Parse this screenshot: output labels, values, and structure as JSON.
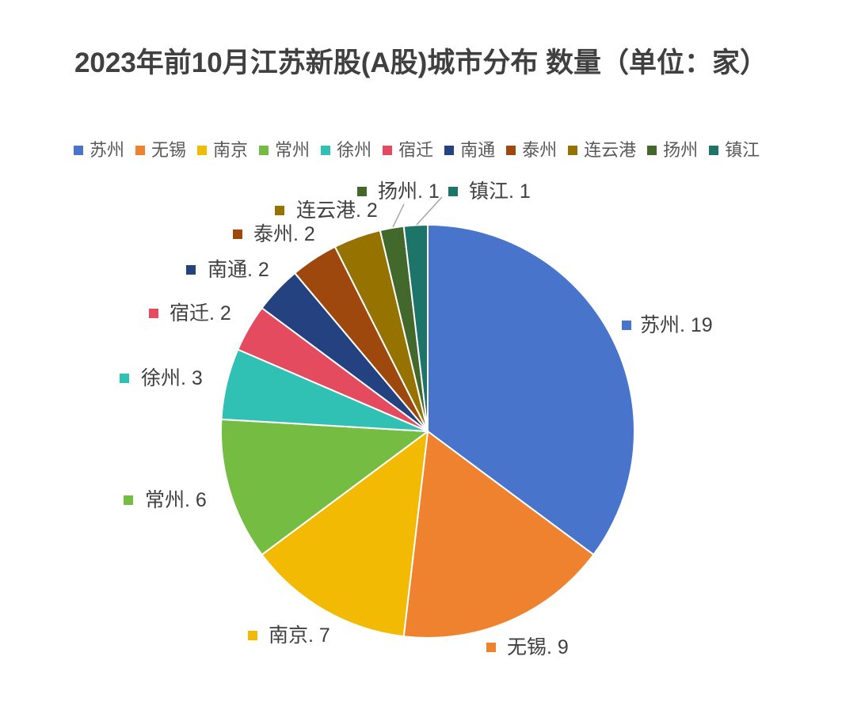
{
  "chart_data": {
    "type": "pie",
    "title": "2023年前10月江苏新股(A股)城市分布 数量（单位：家）",
    "categories": [
      "苏州",
      "无锡",
      "南京",
      "常州",
      "徐州",
      "宿迁",
      "南通",
      "泰州",
      "连云港",
      "扬州",
      "镇江"
    ],
    "values": [
      19,
      9,
      7,
      6,
      3,
      2,
      2,
      2,
      2,
      1,
      1
    ],
    "data_labels": [
      "苏州. 19",
      "无锡. 9",
      "南京. 7",
      "常州. 6",
      "徐州. 3",
      "宿迁. 2",
      "南通. 2",
      "泰州. 2",
      "连云港. 2",
      "扬州. 1",
      "镇江. 1"
    ],
    "colors": [
      "#4874CB",
      "#EE822F",
      "#F2BA02",
      "#75BD42",
      "#30C0B4",
      "#E54B5E",
      "#254280",
      "#9E480E",
      "#967300",
      "#43682B",
      "#1D7468"
    ],
    "legend_position": "top"
  }
}
